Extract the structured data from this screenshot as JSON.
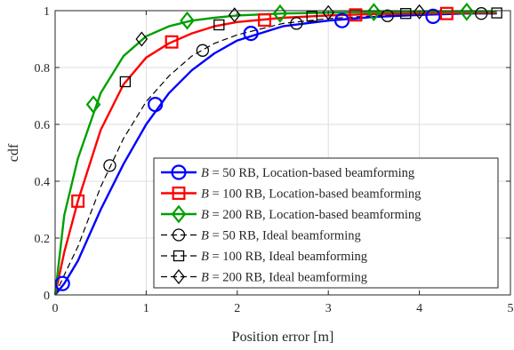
{
  "chart_data": {
    "type": "line",
    "xlabel": "Position error [m]",
    "ylabel": "cdf",
    "xlim": [
      0,
      5
    ],
    "ylim": [
      0,
      1
    ],
    "xticks": [
      0,
      1,
      2,
      3,
      4,
      5
    ],
    "yticks": [
      0,
      0.2,
      0.4,
      0.6,
      0.8,
      1
    ],
    "xtick_labels": [
      "0",
      "1",
      "2",
      "3",
      "4",
      "5"
    ],
    "ytick_labels": [
      "0",
      "0.2",
      "0.4",
      "0.6",
      "0.8",
      "1"
    ],
    "grid": true,
    "legend_position": "lower-right",
    "series": [
      {
        "name": "B = 50 RB, Location-based beamforming",
        "name_var": "B",
        "name_rest": " = 50 RB, Location-based beamforming",
        "color": "#0000ff",
        "line": "solid",
        "marker": "circle",
        "x": [
          0,
          0.1,
          0.25,
          0.5,
          0.75,
          1.0,
          1.25,
          1.5,
          1.75,
          2.0,
          2.5,
          3.0,
          3.5,
          4.0,
          4.5,
          4.85
        ],
        "y": [
          0,
          0.04,
          0.12,
          0.3,
          0.46,
          0.6,
          0.71,
          0.79,
          0.85,
          0.895,
          0.945,
          0.965,
          0.978,
          0.985,
          0.99,
          0.99
        ],
        "marker_x": [
          0.08,
          1.1,
          2.15,
          3.15,
          4.15
        ],
        "marker_y": [
          0.04,
          0.67,
          0.92,
          0.965,
          0.98
        ]
      },
      {
        "name": "B = 100 RB, Location-based beamforming",
        "name_var": "B",
        "name_rest": " = 100 RB, Location-based beamforming",
        "color": "#ff0000",
        "line": "solid",
        "marker": "square",
        "x": [
          0,
          0.1,
          0.25,
          0.5,
          0.75,
          1.0,
          1.25,
          1.5,
          1.75,
          2.0,
          2.5,
          3.0,
          3.5,
          4.0,
          4.5,
          4.85
        ],
        "y": [
          0,
          0.15,
          0.33,
          0.58,
          0.74,
          0.835,
          0.885,
          0.92,
          0.945,
          0.96,
          0.975,
          0.983,
          0.988,
          0.99,
          0.992,
          0.992
        ],
        "marker_x": [
          0.25,
          1.28,
          2.3,
          3.3,
          4.3
        ],
        "marker_y": [
          0.33,
          0.89,
          0.967,
          0.985,
          0.99
        ]
      },
      {
        "name": "B = 200 RB, Location-based beamforming",
        "name_var": "B",
        "name_rest": " = 200 RB, Location-based beamforming",
        "color": "#00a000",
        "line": "solid",
        "marker": "diamond",
        "x": [
          0,
          0.1,
          0.25,
          0.5,
          0.75,
          1.0,
          1.25,
          1.5,
          1.75,
          2.0,
          2.5,
          3.0,
          3.5,
          4.0,
          4.5,
          4.85
        ],
        "y": [
          0,
          0.28,
          0.48,
          0.71,
          0.84,
          0.91,
          0.945,
          0.965,
          0.975,
          0.983,
          0.99,
          0.993,
          0.995,
          0.996,
          0.996,
          0.996
        ],
        "marker_x": [
          0.42,
          1.45,
          2.47,
          3.5,
          4.52
        ],
        "marker_y": [
          0.67,
          0.965,
          0.99,
          0.995,
          0.996
        ]
      },
      {
        "name": "B = 50 RB, Ideal beamforming",
        "name_var": "B",
        "name_rest": " = 50 RB, Ideal beamforming",
        "color": "#000000",
        "line": "dashed",
        "marker": "circle",
        "x": [
          0,
          0.1,
          0.25,
          0.5,
          0.75,
          1.0,
          1.25,
          1.5,
          1.75,
          2.0,
          2.5,
          3.0,
          3.5,
          4.0,
          4.5,
          4.85
        ],
        "y": [
          0,
          0.07,
          0.17,
          0.38,
          0.55,
          0.68,
          0.77,
          0.84,
          0.885,
          0.915,
          0.955,
          0.972,
          0.982,
          0.987,
          0.99,
          0.99
        ],
        "marker_x": [
          0.6,
          1.62,
          2.65,
          3.65,
          4.68
        ],
        "marker_y": [
          0.455,
          0.86,
          0.955,
          0.982,
          0.99
        ]
      },
      {
        "name": "B = 100 RB, Ideal beamforming",
        "name_var": "B",
        "name_rest": " = 100 RB, Ideal beamforming",
        "color": "#000000",
        "line": "dashed",
        "marker": "square",
        "x": [
          0,
          0.1,
          0.25,
          0.5,
          0.75,
          1.0,
          1.25,
          1.5,
          1.75,
          2.0,
          2.5,
          3.0,
          3.5,
          4.0,
          4.5,
          4.85
        ],
        "y": [
          0,
          0.15,
          0.33,
          0.58,
          0.74,
          0.835,
          0.885,
          0.92,
          0.945,
          0.96,
          0.975,
          0.983,
          0.988,
          0.99,
          0.992,
          0.992
        ],
        "marker_x": [
          0.77,
          1.8,
          2.82,
          3.85,
          4.85
        ],
        "marker_y": [
          0.75,
          0.95,
          0.98,
          0.99,
          0.992
        ]
      },
      {
        "name": "B = 200 RB, Ideal beamforming",
        "name_var": "B",
        "name_rest": " = 200 RB, Ideal beamforming",
        "color": "#000000",
        "line": "dashed",
        "marker": "diamond",
        "x": [
          0,
          0.1,
          0.25,
          0.5,
          0.75,
          1.0,
          1.25,
          1.5,
          1.75,
          2.0,
          2.5,
          3.0,
          3.5,
          4.0,
          4.5,
          4.85
        ],
        "y": [
          0,
          0.28,
          0.48,
          0.71,
          0.84,
          0.91,
          0.945,
          0.965,
          0.975,
          0.983,
          0.99,
          0.993,
          0.995,
          0.996,
          0.996,
          0.996
        ],
        "marker_x": [
          0.95,
          1.97,
          3.0,
          4.0
        ],
        "marker_y": [
          0.9,
          0.985,
          0.993,
          0.996
        ]
      }
    ]
  }
}
